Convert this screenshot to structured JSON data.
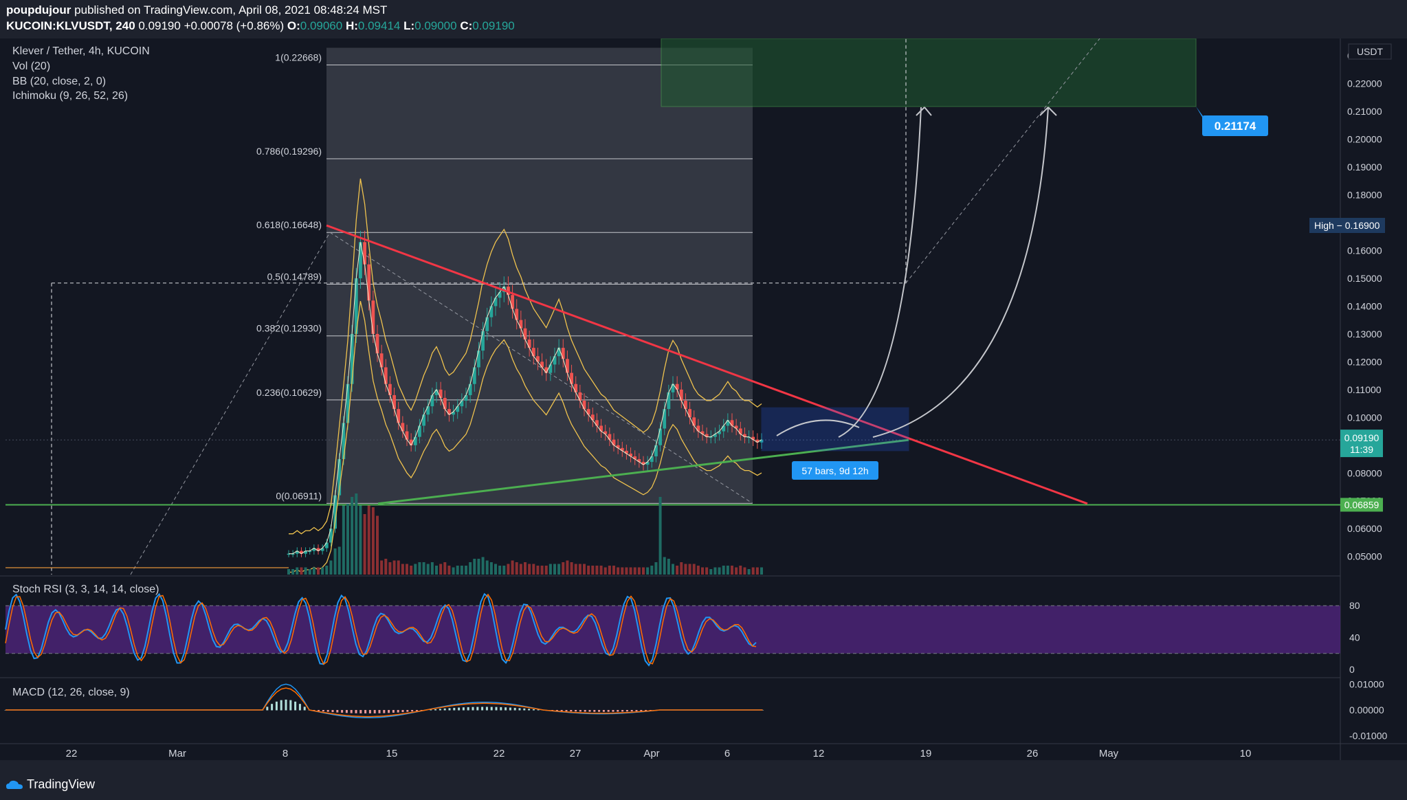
{
  "header": {
    "author": "poupdujour",
    "published_text": "published on TradingView.com, April 08, 2021 08:48:24 MST",
    "symbol": "KUCOIN:KLVUSDT, 240",
    "last": "0.09190",
    "change": "+0.00078 (+0.86%)",
    "o_label": "O:",
    "o": "0.09060",
    "h_label": "H:",
    "h": "0.09414",
    "l_label": "L:",
    "l": "0.09000",
    "c_label": "C:",
    "c": "0.09190"
  },
  "legend": {
    "title": "Klever / Tether, 4h, KUCOIN",
    "vol": "Vol (20)",
    "bb": "BB (20, close, 2, 0)",
    "ichimoku": "Ichimoku (9, 26, 52, 26)",
    "stoch": "Stoch RSI (3, 3, 14, 14, close)",
    "macd": "MACD (12, 26, close, 9)"
  },
  "footer": {
    "brand": "TradingView"
  },
  "colors": {
    "bg": "#131722",
    "panel": "#1e222d",
    "up": "#26a69a",
    "down": "#ef5350",
    "green_line": "#4caf50",
    "red_line": "#f23645",
    "accent": "#2196f3",
    "gold": "#f0c34e"
  },
  "chart_data": {
    "type": "candlestick",
    "currency_label": "USDT",
    "price_ticks": [
      "0.05000",
      "0.06000",
      "0.07000",
      "0.08000",
      "0.09000",
      "0.10000",
      "0.11000",
      "0.12000",
      "0.13000",
      "0.14000",
      "0.15000",
      "0.16000",
      "0.17000",
      "0.18000",
      "0.19000",
      "0.20000",
      "0.21000",
      "0.22000",
      "0.23000"
    ],
    "ylim": [
      0.0435,
      0.2362
    ],
    "x_ticks": [
      "22",
      "Mar",
      "8",
      "15",
      "22",
      "27",
      "Apr",
      "6",
      "12",
      "19",
      "26",
      "May",
      "10"
    ],
    "fib_levels": [
      {
        "label": "1(0.22668)",
        "value": 0.22668
      },
      {
        "label": "0.786(0.19296)",
        "value": 0.19296
      },
      {
        "label": "0.618(0.16648)",
        "value": 0.16648
      },
      {
        "label": "0.5(0.14789)",
        "value": 0.14789
      },
      {
        "label": "0.382(0.12930)",
        "value": 0.1293
      },
      {
        "label": "0.236(0.10629)",
        "value": 0.10629
      },
      {
        "label": "0(0.06911)",
        "value": 0.06911
      }
    ],
    "badges": {
      "target": "0.21174",
      "high": "High  −  0.16900",
      "last_price": "0.09190",
      "countdown": "11:39",
      "support": "0.06859",
      "range_label": "57 bars, 9d 12h"
    },
    "close_series": [
      0.051,
      0.051,
      0.052,
      0.051,
      0.052,
      0.052,
      0.053,
      0.052,
      0.053,
      0.055,
      0.06,
      0.072,
      0.085,
      0.098,
      0.112,
      0.13,
      0.15,
      0.163,
      0.155,
      0.142,
      0.13,
      0.123,
      0.118,
      0.112,
      0.108,
      0.103,
      0.098,
      0.095,
      0.092,
      0.09,
      0.093,
      0.097,
      0.101,
      0.104,
      0.108,
      0.11,
      0.107,
      0.103,
      0.101,
      0.102,
      0.104,
      0.106,
      0.108,
      0.112,
      0.118,
      0.124,
      0.131,
      0.136,
      0.14,
      0.143,
      0.145,
      0.147,
      0.144,
      0.139,
      0.135,
      0.132,
      0.128,
      0.125,
      0.122,
      0.12,
      0.118,
      0.116,
      0.119,
      0.122,
      0.125,
      0.121,
      0.116,
      0.112,
      0.109,
      0.106,
      0.103,
      0.101,
      0.099,
      0.097,
      0.095,
      0.094,
      0.092,
      0.09,
      0.089,
      0.088,
      0.087,
      0.086,
      0.085,
      0.084,
      0.083,
      0.084,
      0.086,
      0.09,
      0.096,
      0.103,
      0.109,
      0.112,
      0.11,
      0.106,
      0.103,
      0.1,
      0.097,
      0.095,
      0.094,
      0.093,
      0.093,
      0.094,
      0.095,
      0.097,
      0.099,
      0.097,
      0.096,
      0.094,
      0.093,
      0.093,
      0.092,
      0.091,
      0.092
    ],
    "stoch_ylim": [
      0,
      100
    ],
    "stoch_ticks": [
      "80",
      "40",
      "0"
    ],
    "macd_ticks": [
      "0.01000",
      "0.00000",
      "-0.01000"
    ],
    "macd_ylim": [
      -0.0125,
      0.0125
    ]
  }
}
